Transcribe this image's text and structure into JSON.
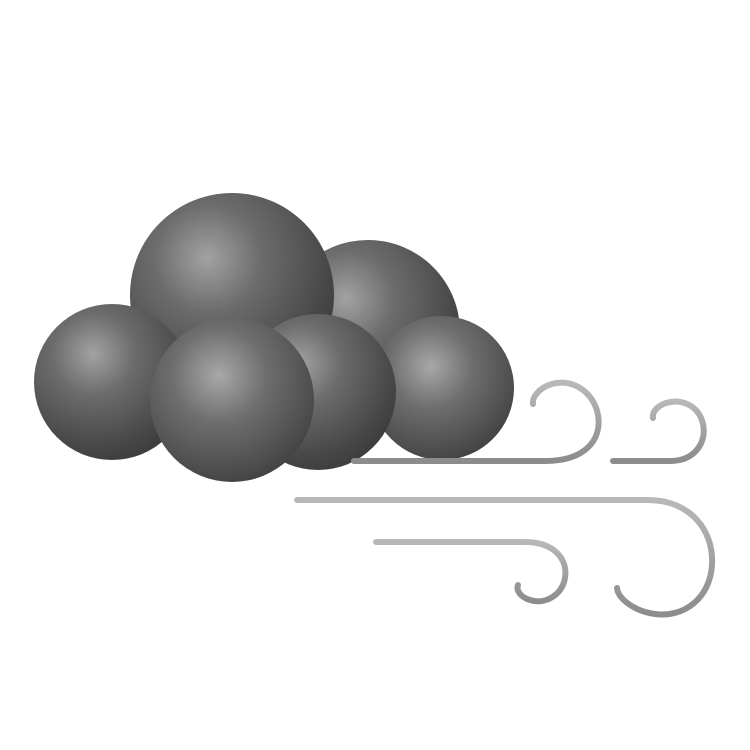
{
  "icon": {
    "name": "windy-cloud",
    "cloud_color": "#5a5a5a",
    "wind_color": "#9a9a9a"
  }
}
